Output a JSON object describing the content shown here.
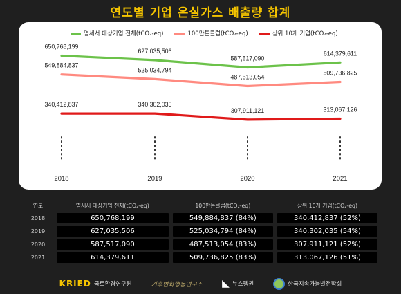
{
  "title": "연도별 기업 온실가스 배출량 합계",
  "chart_data": {
    "type": "line",
    "categories": [
      "2018",
      "2019",
      "2020",
      "2021"
    ],
    "series": [
      {
        "name": "명세서 대상기업 전체(tCO₂-eq)",
        "color": "#6cc24a",
        "values": [
          650768199,
          627035506,
          587517090,
          614379611
        ],
        "labels": [
          "650,768,199",
          "627,035,506",
          "587,517,090",
          "614,379,611"
        ]
      },
      {
        "name": "100만톤클럽(tCO₂-eq)",
        "color": "#ff8a80",
        "values": [
          549884837,
          525034794,
          487513054,
          509736825
        ],
        "labels": [
          "549,884,837",
          "525,034,794",
          "487,513,054",
          "509,736,825"
        ]
      },
      {
        "name": "상위 10개 기업(tCO₂-eq)",
        "color": "#e01a1a",
        "values": [
          340412837,
          340302035,
          307911121,
          313067126
        ],
        "labels": [
          "340,412,837",
          "340,302,035",
          "307,911,121",
          "313,067,126"
        ]
      }
    ],
    "legend_position": "top",
    "grid": false
  },
  "table": {
    "headers": [
      "연도",
      "명세서 대상기업 전체(tCO₂-eq)",
      "100만톤클럽(tCO₂-eq)",
      "상위 10개 기업(tCO₂-eq)"
    ],
    "rows": [
      {
        "year": "2018",
        "total": "650,768,199",
        "club": "549,884,837 (84%)",
        "top10": "340,412,837 (52%)"
      },
      {
        "year": "2019",
        "total": "627,035,506",
        "club": "525,034,794 (84%)",
        "top10": "340,302,035 (54%)"
      },
      {
        "year": "2020",
        "total": "587,517,090",
        "club": "487,513,054 (83%)",
        "top10": "307,911,121 (52%)"
      },
      {
        "year": "2021",
        "total": "614,379,611",
        "club": "509,736,825 (83%)",
        "top10": "313,067,126 (51%)"
      }
    ]
  },
  "footer": {
    "kried_mark": "KRIED",
    "kried_name": "국토환경연구원",
    "script_logo": "기후변화행동연구소",
    "news_name": "뉴스펭귄",
    "society_name": "한국지속가능발전학회"
  }
}
